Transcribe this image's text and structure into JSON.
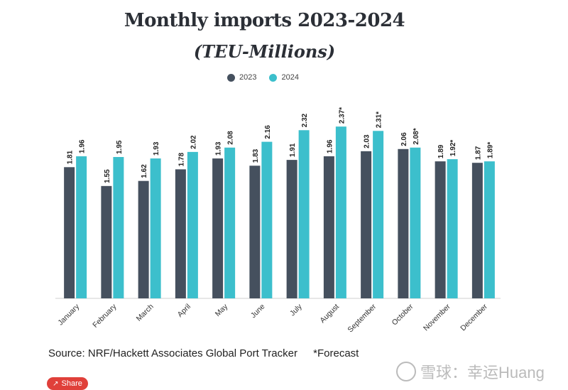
{
  "header": {
    "title": "Monthly imports 2023-2024",
    "subtitle": "(TEU-Millions)"
  },
  "legend": {
    "items": [
      {
        "label": "2023",
        "color": "#45505e"
      },
      {
        "label": "2024",
        "color": "#3cbfcc"
      }
    ]
  },
  "chart_data": {
    "type": "bar",
    "title": "Monthly imports 2023-2024",
    "subtitle": "(TEU-Millions)",
    "categories": [
      "January",
      "February",
      "March",
      "April",
      "May",
      "June",
      "July",
      "August",
      "September",
      "October",
      "November",
      "December"
    ],
    "series": [
      {
        "name": "2023",
        "color": "#45505e",
        "values": [
          1.81,
          1.55,
          1.62,
          1.78,
          1.93,
          1.83,
          1.91,
          1.96,
          2.03,
          2.06,
          1.89,
          1.87
        ],
        "labels": [
          "1.81",
          "1.55",
          "1.62",
          "1.78",
          "1.93",
          "1.83",
          "1.91",
          "1.96",
          "2.03",
          "2.06",
          "1.89",
          "1.87"
        ]
      },
      {
        "name": "2024",
        "color": "#3cbfcc",
        "values": [
          1.96,
          1.95,
          1.93,
          2.02,
          2.08,
          2.16,
          2.32,
          2.37,
          2.31,
          2.08,
          1.92,
          1.89
        ],
        "labels": [
          "1.96",
          "1.95",
          "1.93",
          "2.02",
          "2.08",
          "2.16",
          "2.32",
          "2.37*",
          "2.31*",
          "2.08*",
          "1.92*",
          "1.89*"
        ]
      }
    ],
    "ylim": [
      0,
      2.45
    ],
    "xlabel": "",
    "ylabel": "",
    "grid": false,
    "legend_position": "top-center"
  },
  "footer": {
    "source": "Source: NRF/Hackett Associates Global Port Tracker",
    "forecast_note": "*Forecast",
    "share_label": "Share",
    "watermark": "雪球：幸运Huang"
  }
}
